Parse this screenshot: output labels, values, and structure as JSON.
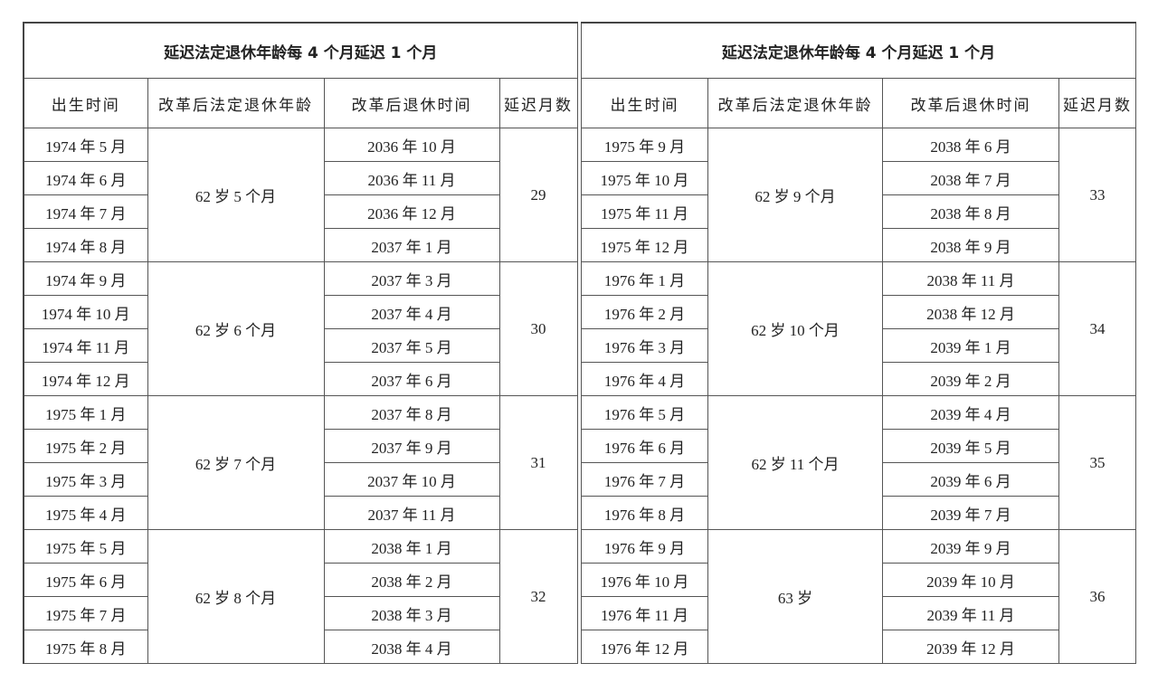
{
  "tables": [
    {
      "title": "延迟法定退休年龄每 4 个月延迟 1 个月",
      "headers": [
        "出生时间",
        "改革后法定退休年龄",
        "改革后退休时间",
        "延迟月数"
      ],
      "groups": [
        {
          "age": "62 岁 5 个月",
          "delay": "29",
          "rows": [
            [
              "1974 年 5 月",
              "2036 年 10 月"
            ],
            [
              "1974 年 6 月",
              "2036 年 11 月"
            ],
            [
              "1974 年 7 月",
              "2036 年 12 月"
            ],
            [
              "1974 年 8 月",
              "2037 年 1 月"
            ]
          ]
        },
        {
          "age": "62 岁 6 个月",
          "delay": "30",
          "rows": [
            [
              "1974 年 9 月",
              "2037 年 3 月"
            ],
            [
              "1974 年 10 月",
              "2037 年 4 月"
            ],
            [
              "1974 年 11 月",
              "2037 年 5 月"
            ],
            [
              "1974 年 12 月",
              "2037 年 6 月"
            ]
          ]
        },
        {
          "age": "62 岁 7 个月",
          "delay": "31",
          "rows": [
            [
              "1975 年 1 月",
              "2037 年 8 月"
            ],
            [
              "1975 年 2 月",
              "2037 年 9 月"
            ],
            [
              "1975 年 3 月",
              "2037 年 10 月"
            ],
            [
              "1975 年 4 月",
              "2037 年 11 月"
            ]
          ]
        },
        {
          "age": "62 岁 8 个月",
          "delay": "32",
          "rows": [
            [
              "1975 年 5 月",
              "2038 年 1 月"
            ],
            [
              "1975 年 6 月",
              "2038 年 2 月"
            ],
            [
              "1975 年 7 月",
              "2038 年 3 月"
            ],
            [
              "1975 年 8 月",
              "2038 年 4 月"
            ]
          ]
        }
      ]
    },
    {
      "title": "延迟法定退休年龄每 4 个月延迟 1 个月",
      "headers": [
        "出生时间",
        "改革后法定退休年龄",
        "改革后退休时间",
        "延迟月数"
      ],
      "groups": [
        {
          "age": "62 岁 9 个月",
          "delay": "33",
          "rows": [
            [
              "1975 年 9 月",
              "2038 年 6 月"
            ],
            [
              "1975 年 10 月",
              "2038 年 7 月"
            ],
            [
              "1975 年 11 月",
              "2038 年 8 月"
            ],
            [
              "1975 年 12 月",
              "2038 年 9 月"
            ]
          ]
        },
        {
          "age": "62 岁 10 个月",
          "delay": "34",
          "rows": [
            [
              "1976 年 1 月",
              "2038 年 11 月"
            ],
            [
              "1976 年 2 月",
              "2038 年 12 月"
            ],
            [
              "1976 年 3 月",
              "2039 年 1 月"
            ],
            [
              "1976 年 4 月",
              "2039 年 2 月"
            ]
          ]
        },
        {
          "age": "62 岁 11 个月",
          "delay": "35",
          "rows": [
            [
              "1976 年 5 月",
              "2039 年 4 月"
            ],
            [
              "1976 年 6 月",
              "2039 年 5 月"
            ],
            [
              "1976 年 7 月",
              "2039 年 6 月"
            ],
            [
              "1976 年 8 月",
              "2039 年 7 月"
            ]
          ]
        },
        {
          "age": "63 岁",
          "delay": "36",
          "rows": [
            [
              "1976 年 9 月",
              "2039 年 9 月"
            ],
            [
              "1976 年 10 月",
              "2039 年 10 月"
            ],
            [
              "1976 年 11 月",
              "2039 年 11 月"
            ],
            [
              "1976 年 12 月",
              "2039 年 12 月"
            ]
          ]
        }
      ]
    }
  ]
}
